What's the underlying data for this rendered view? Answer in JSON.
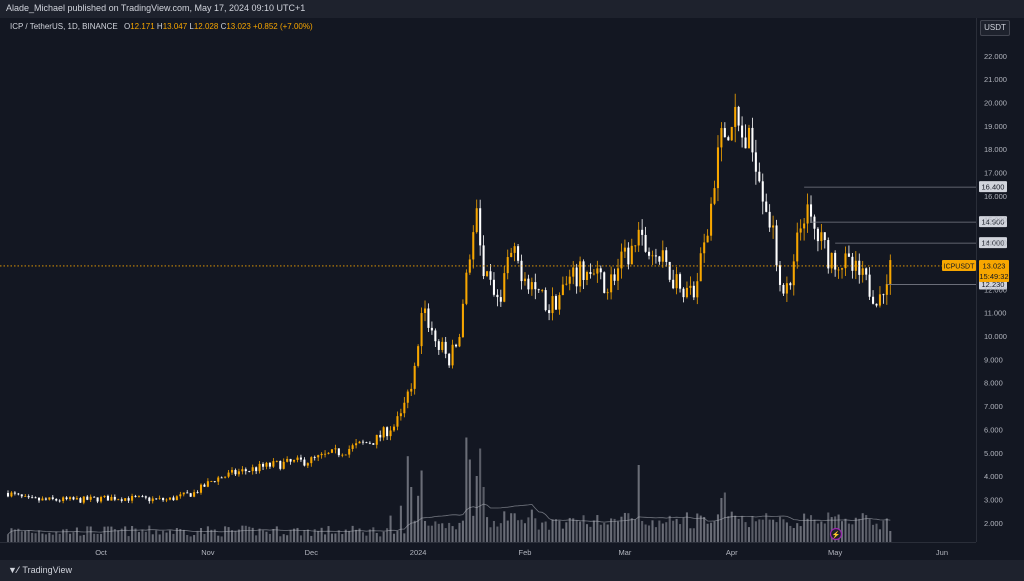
{
  "header": {
    "publisher_line": "Alade_Michael published on TradingView.com, May 17, 2024 09:10 UTC+1"
  },
  "legend": {
    "symbol": "ICP / TetherUS, 1D, BINANCE",
    "open_label": "O",
    "open": "12.171",
    "high_label": "H",
    "high": "13.047",
    "low_label": "L",
    "low": "12.028",
    "close_label": "C",
    "close": "13.023",
    "change": "+0.852 (+7.00%)"
  },
  "axis": {
    "currency": "USDT"
  },
  "footer": {
    "brand": "TradingView",
    "brand_icon": "tradingview-logo-icon"
  },
  "colors": {
    "background": "#131722",
    "up_candle": "#f7a600",
    "down_candle": "#ffffff",
    "volume": "#9598a1",
    "level_line": "#787b86",
    "price_tag": "#f7a600"
  },
  "chart_data": {
    "type": "candlestick",
    "title": "ICP / TetherUS, 1D, BINANCE",
    "y_ticks": [
      2,
      3,
      4,
      5,
      6,
      7,
      8,
      9,
      10,
      11,
      12,
      13,
      14,
      15,
      16,
      17,
      18,
      19,
      20,
      21,
      22
    ],
    "y_tick_labels": [
      "2.000",
      "3.000",
      "4.000",
      "5.000",
      "6.000",
      "7.000",
      "8.000",
      "9.000",
      "10.000",
      "11.000",
      "12.000",
      "13.000",
      "14.000",
      "15.000",
      "16.000",
      "17.000",
      "18.000",
      "19.000",
      "20.000",
      "21.000",
      "22.000"
    ],
    "x_ticks": [
      "Oct",
      "Nov",
      "Dec",
      "2024",
      "Feb",
      "Mar",
      "Apr",
      "May",
      "Jun"
    ],
    "x_tick_dates": [
      "2023-10-01",
      "2023-11-01",
      "2023-12-01",
      "2024-01-01",
      "2024-02-01",
      "2024-03-01",
      "2024-04-01",
      "2024-05-01",
      "2024-06-01"
    ],
    "date_range": [
      "2023-09-04",
      "2024-06-10"
    ],
    "ylim": [
      1.2,
      22.7
    ],
    "grid": false,
    "anchors": [
      [
        "2023-09-04",
        3.3
      ],
      [
        "2023-09-10",
        3.0
      ],
      [
        "2023-09-25",
        3.0
      ],
      [
        "2023-10-05",
        3.1
      ],
      [
        "2023-10-20",
        3.0
      ],
      [
        "2023-10-28",
        3.3
      ],
      [
        "2023-11-03",
        3.9
      ],
      [
        "2023-11-10",
        4.2
      ],
      [
        "2023-11-20",
        4.5
      ],
      [
        "2023-12-01",
        4.7
      ],
      [
        "2023-12-10",
        5.1
      ],
      [
        "2023-12-20",
        5.6
      ],
      [
        "2023-12-27",
        6.5
      ],
      [
        "2023-12-31",
        8.5
      ],
      [
        "2024-01-02",
        11.5
      ],
      [
        "2024-01-06",
        9.8
      ],
      [
        "2024-01-10",
        9.0
      ],
      [
        "2024-01-13",
        10.0
      ],
      [
        "2024-01-15",
        13.0
      ],
      [
        "2024-01-18",
        15.0
      ],
      [
        "2024-01-20",
        12.5
      ],
      [
        "2024-01-24",
        11.5
      ],
      [
        "2024-01-28",
        13.5
      ],
      [
        "2024-02-02",
        12.5
      ],
      [
        "2024-02-08",
        11.2
      ],
      [
        "2024-02-12",
        12.0
      ],
      [
        "2024-02-18",
        12.8
      ],
      [
        "2024-02-25",
        12.2
      ],
      [
        "2024-03-01",
        13.3
      ],
      [
        "2024-03-05",
        14.0
      ],
      [
        "2024-03-10",
        13.5
      ],
      [
        "2024-03-15",
        12.6
      ],
      [
        "2024-03-21",
        11.8
      ],
      [
        "2024-03-25",
        14.5
      ],
      [
        "2024-03-28",
        18.0
      ],
      [
        "2024-04-01",
        19.5
      ],
      [
        "2024-04-04",
        18.5
      ],
      [
        "2024-04-08",
        17.8
      ],
      [
        "2024-04-12",
        15.0
      ],
      [
        "2024-04-15",
        12.5
      ],
      [
        "2024-04-18",
        11.8
      ],
      [
        "2024-04-20",
        14.0
      ],
      [
        "2024-04-22",
        15.4
      ],
      [
        "2024-04-25",
        14.5
      ],
      [
        "2024-04-29",
        13.5
      ],
      [
        "2024-05-03",
        13.2
      ],
      [
        "2024-05-08",
        12.6
      ],
      [
        "2024-05-12",
        11.9
      ],
      [
        "2024-05-14",
        11.6
      ],
      [
        "2024-05-16",
        12.2
      ],
      [
        "2024-05-17",
        13.0
      ]
    ],
    "volume_spikes": [
      [
        "2023-12-24",
        0.24
      ],
      [
        "2023-12-27",
        0.33
      ],
      [
        "2023-12-29",
        0.78
      ],
      [
        "2023-12-30",
        0.5
      ],
      [
        "2024-01-01",
        0.42
      ],
      [
        "2024-01-02",
        0.65
      ],
      [
        "2024-01-15",
        0.95
      ],
      [
        "2024-01-16",
        0.75
      ],
      [
        "2024-01-18",
        0.6
      ],
      [
        "2024-01-19",
        0.85
      ],
      [
        "2024-01-20",
        0.5
      ],
      [
        "2024-03-05",
        0.7
      ],
      [
        "2024-03-29",
        0.4
      ],
      [
        "2024-03-30",
        0.45
      ]
    ],
    "levels": [
      {
        "price": 16.4,
        "label": "16.400",
        "from_date": "2024-04-22"
      },
      {
        "price": 14.9,
        "label": "14.900",
        "from_date": "2024-04-24"
      },
      {
        "price": 14.0,
        "label": "14.000",
        "from_date": "2024-05-01"
      },
      {
        "price": 12.23,
        "label": "12.230",
        "from_date": "2024-05-16"
      }
    ],
    "current": {
      "ticker": "ICPUSDT",
      "price": 13.023,
      "price_label": "13.023",
      "countdown": "15:49:32"
    }
  }
}
